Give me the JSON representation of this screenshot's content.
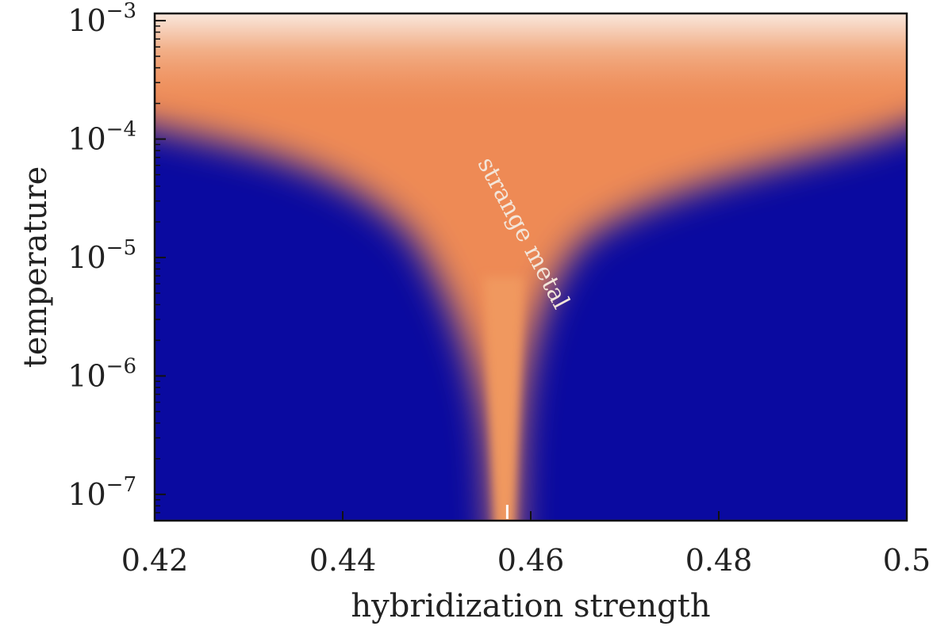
{
  "chart_data": {
    "type": "heatmap",
    "title": "",
    "xlabel": "hybridization strength",
    "ylabel": "temperature",
    "xlim": [
      0.42,
      0.5
    ],
    "ylim": [
      6e-08,
      0.00115
    ],
    "y_scale": "log",
    "x_ticks": [
      0.42,
      0.44,
      0.46,
      0.48,
      0.5
    ],
    "x_tick_labels": [
      "0.42",
      "0.44",
      "0.46",
      "0.48",
      "0.5"
    ],
    "y_ticks": [
      1e-07,
      1e-06,
      1e-05,
      0.0001,
      0.001
    ],
    "y_tick_labels": [
      {
        "base": "10",
        "exp": "−7"
      },
      {
        "base": "10",
        "exp": "−6"
      },
      {
        "base": "10",
        "exp": "−5"
      },
      {
        "base": "10",
        "exp": "−4"
      },
      {
        "base": "10",
        "exp": "−3"
      }
    ],
    "critical_point_x": 0.4575,
    "colormap": {
      "low": "#0a0aa0",
      "mid": "#ee8a55",
      "high": "#f7e2d4"
    },
    "annotations": [
      {
        "text": "strange metal",
        "x": 0.4585,
        "y": 1.5e-05
      }
    ],
    "grid": false
  }
}
